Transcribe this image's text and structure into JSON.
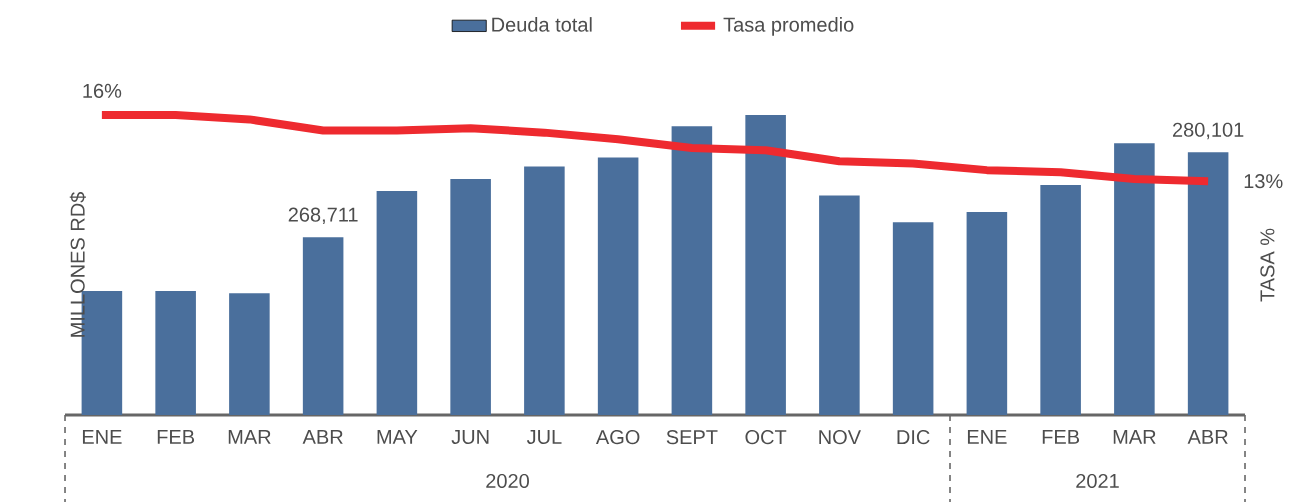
{
  "chart_data": {
    "type": "bar",
    "categories": [
      "ENE",
      "FEB",
      "MAR",
      "ABR",
      "MAY",
      "JUN",
      "JUL",
      "AGO",
      "SEPT",
      "OCT",
      "NOV",
      "DIC",
      "ENE",
      "FEB",
      "MAR",
      "ABR"
    ],
    "series": [
      {
        "name": "Deuda total",
        "color": "#4a6f9c",
        "values": [
          261500,
          261500,
          261200,
          268711,
          274900,
          276500,
          278200,
          279400,
          283600,
          285100,
          274300,
          270700,
          272100,
          275700,
          281300,
          280101
        ],
        "value_labels": [
          null,
          null,
          null,
          "268,711",
          null,
          null,
          null,
          null,
          null,
          null,
          null,
          null,
          null,
          null,
          null,
          "280,101"
        ]
      },
      {
        "name": "Tasa promedio",
        "type": "line",
        "axis": "y2",
        "color": "#ee2a2f",
        "values": [
          16,
          16,
          15.8,
          15.3,
          15.3,
          15.4,
          15.2,
          14.9,
          14.5,
          14.4,
          13.9,
          13.8,
          13.5,
          13.4,
          13.1,
          13
        ],
        "value_labels": [
          "16%",
          null,
          null,
          null,
          null,
          null,
          null,
          null,
          null,
          null,
          null,
          null,
          null,
          null,
          null,
          "13%"
        ]
      }
    ],
    "ylabel": "MILLONES RD$",
    "y2label": "TASA %",
    "ylim": [
      244860,
      285100
    ],
    "y2lim": [
      2.4,
      16
    ],
    "legend": "top",
    "annotations": [
      "2020",
      "2021"
    ]
  }
}
